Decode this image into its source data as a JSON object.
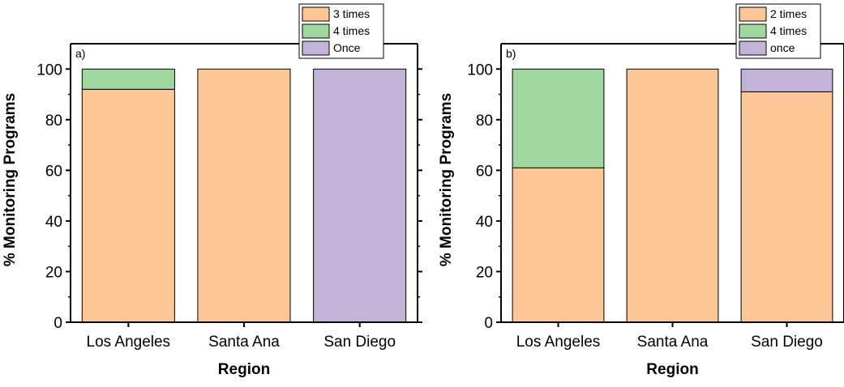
{
  "chart_data": [
    {
      "type": "bar",
      "stacked": true,
      "panel_label": "a)",
      "categories": [
        "Los Angeles",
        "Santa Ana",
        "San Diego"
      ],
      "series": [
        {
          "name": "3 times",
          "color": "#fdc697",
          "values": [
            92,
            100,
            0
          ]
        },
        {
          "name": "4 times",
          "color": "#9fd79f",
          "values": [
            8,
            0,
            0
          ]
        },
        {
          "name": "Once",
          "color": "#c3b2d8",
          "values": [
            0,
            0,
            100
          ]
        }
      ],
      "xlabel": "Region",
      "ylabel": "% Monitoring Programs",
      "ylim": [
        0,
        110
      ],
      "yticks": [
        0,
        20,
        40,
        60,
        80,
        100
      ],
      "legend_position": "top-right"
    },
    {
      "type": "bar",
      "stacked": true,
      "panel_label": "b)",
      "categories": [
        "Los Angeles",
        "Santa Ana",
        "San Diego"
      ],
      "series": [
        {
          "name": "2 times",
          "color": "#fdc697",
          "values": [
            61,
            100,
            91
          ]
        },
        {
          "name": "4 times",
          "color": "#9fd79f",
          "values": [
            39,
            0,
            0
          ]
        },
        {
          "name": "once",
          "color": "#c3b2d8",
          "values": [
            0,
            0,
            9
          ]
        }
      ],
      "xlabel": "Region",
      "ylabel": "% Monitoring Programs",
      "ylim": [
        0,
        110
      ],
      "yticks": [
        0,
        20,
        40,
        60,
        80,
        100
      ],
      "legend_position": "top-right"
    }
  ]
}
